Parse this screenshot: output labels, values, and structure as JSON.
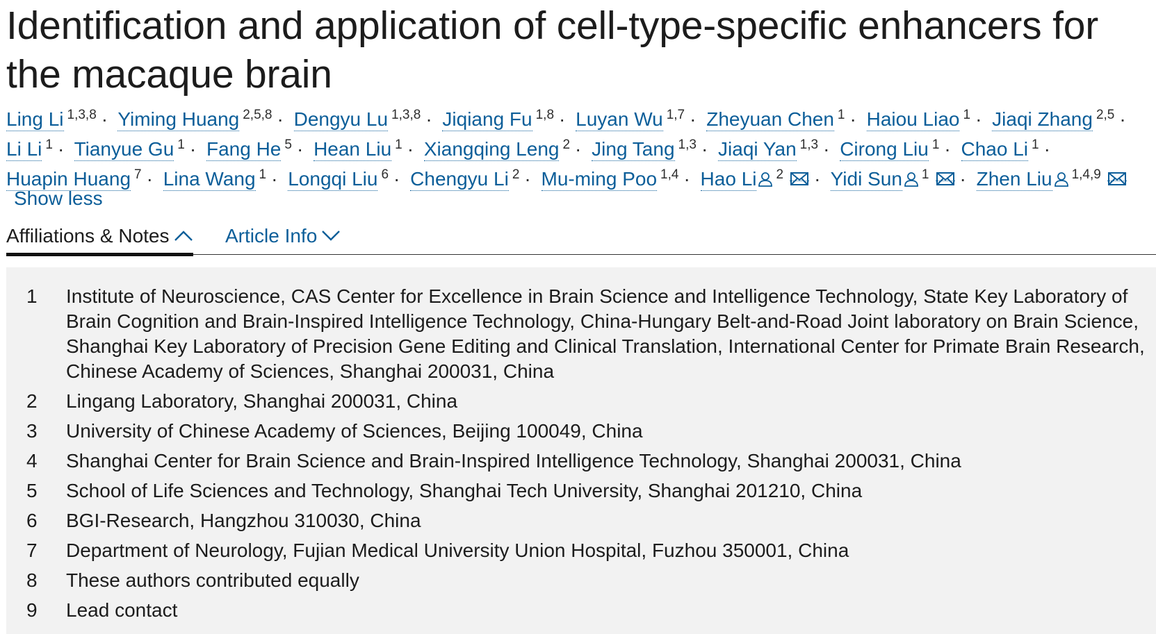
{
  "article": {
    "title": "Identification and application of cell-type-specific enhancers for the macaque brain"
  },
  "authors": [
    {
      "name": "Ling Li",
      "sup": "1,3,8"
    },
    {
      "name": "Yiming Huang",
      "sup": "2,5,8"
    },
    {
      "name": "Dengyu Lu",
      "sup": "1,3,8"
    },
    {
      "name": "Jiqiang Fu",
      "sup": "1,8"
    },
    {
      "name": "Luyan Wu",
      "sup": "1,7"
    },
    {
      "name": "Zheyuan Chen",
      "sup": "1"
    },
    {
      "name": "Haiou Liao",
      "sup": "1"
    },
    {
      "name": "Jiaqi Zhang",
      "sup": "2,5"
    },
    {
      "name": "Li Li",
      "sup": "1"
    },
    {
      "name": "Tianyue Gu",
      "sup": "1"
    },
    {
      "name": "Fang He",
      "sup": "5"
    },
    {
      "name": "Hean Liu",
      "sup": "1"
    },
    {
      "name": "Xiangqing Leng",
      "sup": "2"
    },
    {
      "name": "Jing Tang",
      "sup": "1,3"
    },
    {
      "name": "Jiaqi Yan",
      "sup": "1,3"
    },
    {
      "name": "Cirong Liu",
      "sup": "1"
    },
    {
      "name": "Chao Li",
      "sup": "1"
    },
    {
      "name": "Huapin Huang",
      "sup": "7"
    },
    {
      "name": "Lina Wang",
      "sup": "1"
    },
    {
      "name": "Longqi Liu",
      "sup": "6"
    },
    {
      "name": "Chengyu Li",
      "sup": "2"
    },
    {
      "name": "Mu-ming Poo",
      "sup": "1,4"
    },
    {
      "name": "Hao Li",
      "sup": "2",
      "corresponding": true
    },
    {
      "name": "Yidi Sun",
      "sup": "1",
      "corresponding": true
    },
    {
      "name": "Zhen Liu",
      "sup": "1,4,9",
      "corresponding": true
    }
  ],
  "author_separator": "·",
  "icons": {
    "person": "person-icon",
    "mail": "mail-icon",
    "chevron_up": "chevron-up-icon",
    "chevron_down": "chevron-down-icon"
  },
  "show_less_label": "Show less",
  "tabs": {
    "affiliations_label": "Affiliations & Notes",
    "article_info_label": "Article Info",
    "active": "affiliations"
  },
  "affiliations": [
    {
      "num": "1",
      "text": "Institute of Neuroscience, CAS Center for Excellence in Brain Science and Intelligence Technology, State Key Laboratory of Brain Cognition and Brain-Inspired Intelligence Technology, China-Hungary Belt-and-Road Joint laboratory on Brain Science, Shanghai Key Laboratory of Precision Gene Editing and Clinical Translation, International Center for Primate Brain Research, Chinese Academy of Sciences, Shanghai 200031, China"
    },
    {
      "num": "2",
      "text": "Lingang Laboratory, Shanghai 200031, China"
    },
    {
      "num": "3",
      "text": "University of Chinese Academy of Sciences, Beijing 100049, China"
    },
    {
      "num": "4",
      "text": "Shanghai Center for Brain Science and Brain-Inspired Intelligence Technology, Shanghai 200031, China"
    },
    {
      "num": "5",
      "text": "School of Life Sciences and Technology, Shanghai Tech University, Shanghai 201210, China"
    },
    {
      "num": "6",
      "text": "BGI-Research, Hangzhou 310030, China"
    },
    {
      "num": "7",
      "text": "Department of Neurology, Fujian Medical University Union Hospital, Fuzhou 350001, China"
    },
    {
      "num": "8",
      "text": "These authors contributed equally"
    },
    {
      "num": "9",
      "text": "Lead contact"
    }
  ],
  "colors": {
    "link": "#0c5e99",
    "text": "#1c1c1c",
    "panel_background": "#f2f2f2"
  }
}
